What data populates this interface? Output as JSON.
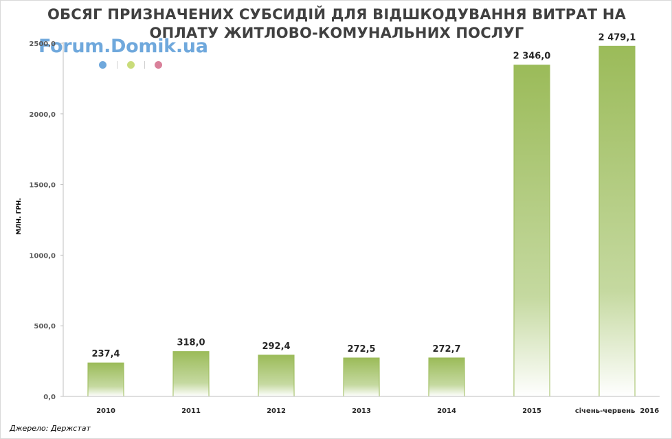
{
  "logo": {
    "text": "Forum.Domik.ua",
    "dot_colors": [
      "#6fa8dc",
      "#c9dc7a",
      "#d9819a"
    ]
  },
  "chart_data": {
    "type": "bar",
    "title_lines": [
      "ОБСЯГ ПРИЗНАЧЕНИХ СУБСИДІЙ ДЛЯ ВІДШКОДУВАННЯ ВИТРАТ НА",
      "ОПЛАТУ ЖИТЛОВО-КОМУНАЛЬНИХ ПОСЛУГ"
    ],
    "ylabel": "МЛН. ГРН.",
    "categories": [
      "2010",
      "2011",
      "2012",
      "2013",
      "2014",
      "2015",
      "січень-червень  2016"
    ],
    "values": [
      237.4,
      318.0,
      292.4,
      272.5,
      272.7,
      2346.0,
      2479.1
    ],
    "value_labels": [
      "237,4",
      "318,0",
      "292,4",
      "272,5",
      "272,7",
      "2 346,0",
      "2 479,1"
    ],
    "ylim": [
      0,
      2500
    ],
    "yticks": [
      0,
      500,
      1000,
      1500,
      2000,
      2500
    ],
    "ytick_labels": [
      "0,0",
      "500,0",
      "1000,0",
      "1500,0",
      "2000,0",
      "2500,0"
    ],
    "grid": false,
    "bar_color": "#9bbb59",
    "source": "Джерело: Держстат"
  }
}
